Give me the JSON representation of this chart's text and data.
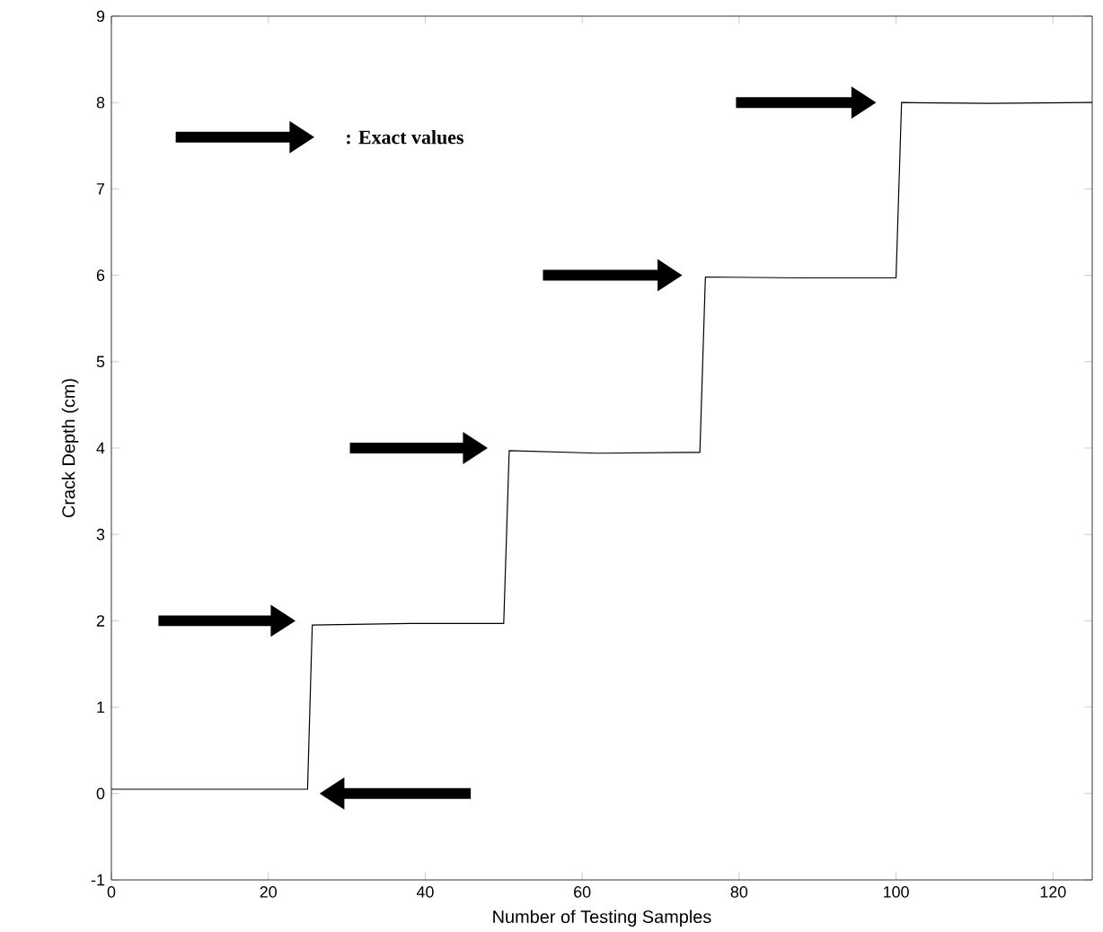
{
  "chart_data": {
    "type": "line",
    "xlabel": "Number of Testing Samples",
    "ylabel": "Crack Depth (cm)",
    "annotations": [
      ": Exact values"
    ],
    "series": [
      {
        "color": "#000000",
        "x": [
          0,
          25,
          25.6,
          38,
          50,
          50.7,
          62,
          75,
          75.7,
          88,
          100,
          100.7,
          112,
          125
        ],
        "values": [
          0.05,
          0.05,
          1.95,
          1.97,
          1.97,
          3.97,
          3.94,
          3.95,
          5.98,
          5.97,
          5.97,
          8.0,
          7.99,
          8.0
        ]
      }
    ],
    "xlim": [
      0,
      125
    ],
    "ylim": [
      -1,
      9
    ],
    "xticks": [
      0,
      20,
      40,
      60,
      80,
      100,
      120
    ],
    "yticks": [
      -1,
      0,
      1,
      2,
      3,
      4,
      5,
      6,
      7,
      8,
      9
    ],
    "grid": false,
    "marker": "none",
    "line_style": "solid"
  }
}
